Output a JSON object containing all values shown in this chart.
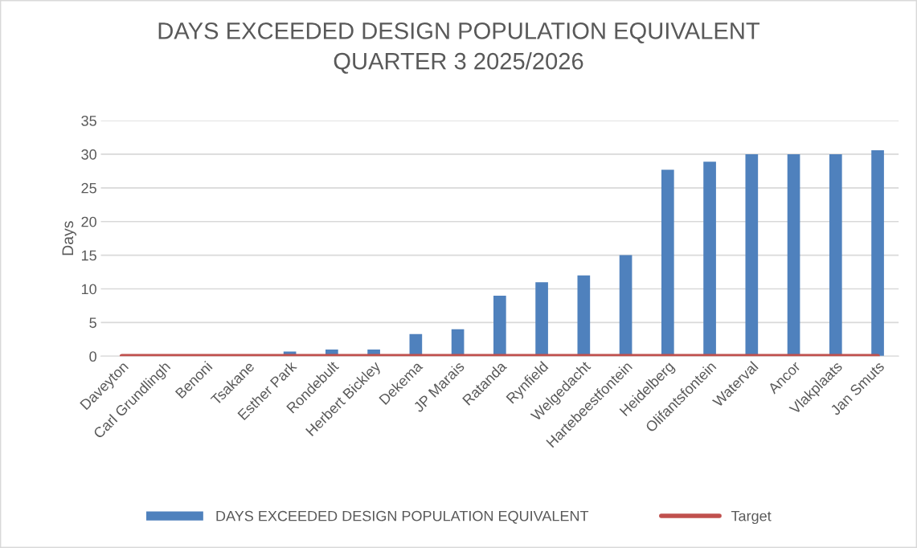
{
  "chart_data": {
    "type": "bar",
    "title": "DAYS EXCEEDED DESIGN POPULATION EQUIVALENT\nQUARTER 3 2025/2026",
    "ylabel": "Days",
    "categories": [
      "Daveyton",
      "Carl Grundlingh",
      "Benoni",
      "Tsakane",
      "Esther Park",
      "Rondebult",
      "Herbert Bickley",
      "Dekema",
      "JP Marais",
      "Ratanda",
      "Rynfield",
      "Welgedacht",
      "Hartebeestfontein",
      "Heidelberg",
      "Olifantsfontein",
      "Waterval",
      "Ancor",
      "Vlakplaats",
      "Jan Smuts"
    ],
    "series": [
      {
        "name": "DAYS EXCEEDED DESIGN POPULATION EQUIVALENT",
        "color": "#4f81bd",
        "values": [
          0,
          0,
          0,
          0,
          0.7,
          1,
          1,
          3.3,
          4,
          9,
          11,
          12,
          15,
          27.7,
          28.9,
          30,
          30,
          30,
          30.6
        ]
      },
      {
        "name": "Target",
        "type": "line",
        "color": "#c0504d",
        "values": [
          0,
          0,
          0,
          0,
          0,
          0,
          0,
          0,
          0,
          0,
          0,
          0,
          0,
          0,
          0,
          0,
          0,
          0,
          0
        ]
      }
    ],
    "ylim": [
      0,
      35
    ],
    "yticks": [
      0,
      5,
      10,
      15,
      20,
      25,
      30,
      35
    ],
    "grid": "y",
    "legend": "bottom"
  }
}
